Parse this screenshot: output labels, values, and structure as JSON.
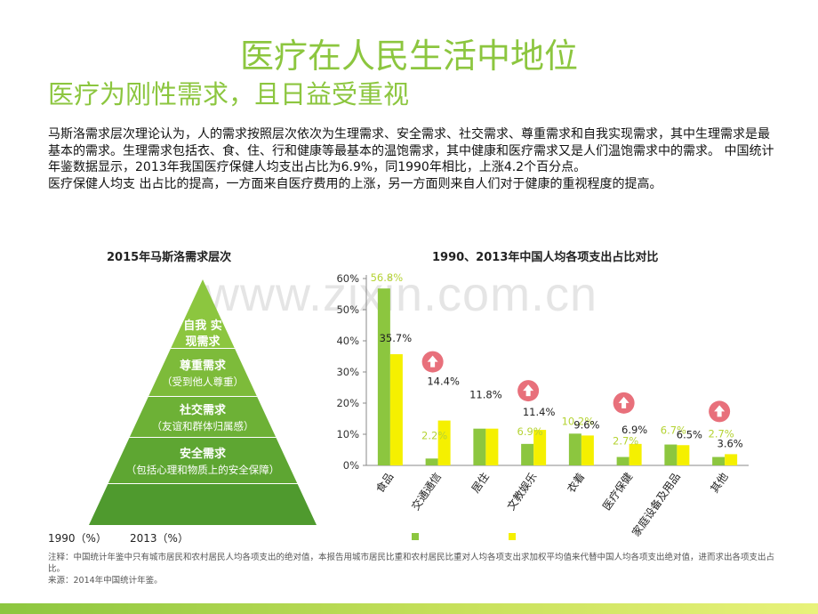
{
  "header": {
    "title": "医疗在人民生活中地位",
    "subtitle": "医疗为刚性需求，且日益受重视"
  },
  "body": {
    "para1": "马斯洛需求层次理论认为，人的需求按照层次依次为生理需求、安全需求、社交需求、尊重需求和自我实现需求，其中生理需求是最基本的需求。生理需求包括衣、食、住、行和健康等最基本的温饱需求，其中健康和医疗需求又是人们温饱需求中的需求。 中国统计年鉴数据显示，2013年我国医疗保健人均支出占比为6.9%，同1990年相比，上涨4.2个百分点。",
    "para2": "医疗保健人均支 出占比的提高，一方面来自医疗费用的上涨，另一方面则来自人们对于健康的重视程度的提高。"
  },
  "watermark": "www.zixin.com.cn",
  "pyramid": {
    "title": "2015年马斯洛需求层次",
    "levels": [
      {
        "name": "自我 实现需求",
        "note": "",
        "color": "#8cc63f"
      },
      {
        "name": "尊重需求",
        "note": "（受到他人尊重）",
        "color": "#7dbb3a"
      },
      {
        "name": "社交需求",
        "note": "（友谊和群体归属感）",
        "color": "#6db136"
      },
      {
        "name": "安全需求",
        "note": "（包括心理和物质上的安全保障）",
        "color": "#5ea632"
      },
      {
        "name": "",
        "note": "",
        "color": "#4f9a2e"
      }
    ]
  },
  "legend": {
    "s1990": "1990（%）",
    "s2013": "2013（%）"
  },
  "chart_data": {
    "type": "bar",
    "title": "1990、2013年中国人均各项支出占比对比",
    "categories": [
      "食品",
      "交通通信",
      "居住",
      "文教娱乐",
      "衣着",
      "医疗保健",
      "家庭设备及用品",
      "其他"
    ],
    "series": [
      {
        "name": "1990（%）",
        "color": "#8cc63f",
        "values": [
          56.8,
          2.2,
          11.8,
          6.9,
          10.2,
          2.7,
          6.7,
          2.7
        ]
      },
      {
        "name": "2013（%）",
        "color": "#f5f000",
        "values": [
          35.7,
          14.4,
          11.8,
          11.4,
          9.6,
          6.9,
          6.5,
          3.6
        ]
      }
    ],
    "data_labels_1990": [
      "56.8%",
      "2.2%",
      "11.8%",
      "6.9%",
      "10.2%",
      "2.7%",
      "6.7%",
      "2.7%"
    ],
    "data_labels_2013": [
      "35.7%",
      "14.4%",
      "11.8%",
      "11.4%",
      "9.6%",
      "6.9%",
      "6.5%",
      "3.6%"
    ],
    "increase_markers": [
      1,
      3,
      5,
      7
    ],
    "yticks": [
      "0%",
      "10%",
      "20%",
      "30%",
      "40%",
      "50%",
      "60%"
    ],
    "ylim": [
      0,
      60
    ],
    "grid": false,
    "legend_position": "bottom-left"
  },
  "footnote": {
    "line1": "注释：中国统计年鉴中只有城市居民和农村居民人均各项支出的绝对值，本报告用城市居民比重和农村居民比重对人均各项支出求加权平均值来代替中国人均各项支出绝对值，进而求出各项支出占比。",
    "line2": "来源：2014年中国统计年鉴。"
  },
  "colors": {
    "accent": "#8cc63f",
    "arrow": "#e8707b"
  }
}
